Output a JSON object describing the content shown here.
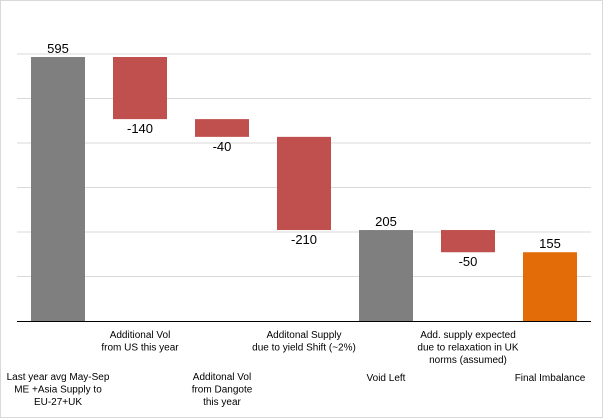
{
  "chart_data": {
    "type": "bar",
    "subtype": "waterfall",
    "categories": [
      [
        "Last year avg May-Sep",
        "ME +Asia Supply to",
        "EU-27+UK"
      ],
      [
        "Additional Vol",
        "from US  this year"
      ],
      [
        "Additonal  Vol",
        "from Dangote",
        "this year"
      ],
      [
        "Additonal Supply",
        "due to yield Shift (~2%)"
      ],
      [
        "Void Left"
      ],
      [
        "Add. supply expected",
        "due to relaxation in UK",
        "norms (assumed)"
      ],
      [
        "Final Imbalance"
      ]
    ],
    "values": [
      595,
      -140,
      -40,
      -210,
      205,
      -50,
      155
    ],
    "bar_kinds": [
      "total",
      "delta",
      "delta",
      "delta",
      "total",
      "delta",
      "total"
    ],
    "data_labels": [
      "595",
      "-140",
      "-40",
      "-210",
      "205",
      "-50",
      "155"
    ],
    "label_levels": [
      "low",
      "high",
      "low",
      "high",
      "low",
      "high",
      "low"
    ],
    "ylim": [
      0,
      600
    ],
    "y_gridlines": [
      100,
      200,
      300,
      400,
      500,
      600
    ],
    "grid": true,
    "legend": "none",
    "title": "",
    "xlabel": "",
    "ylabel": "",
    "colors": {
      "total": "#7f7f7f",
      "decrease": "#c0504d",
      "final": "#e36c09",
      "grid": "#d9d9d9",
      "axis": "#000000"
    }
  }
}
